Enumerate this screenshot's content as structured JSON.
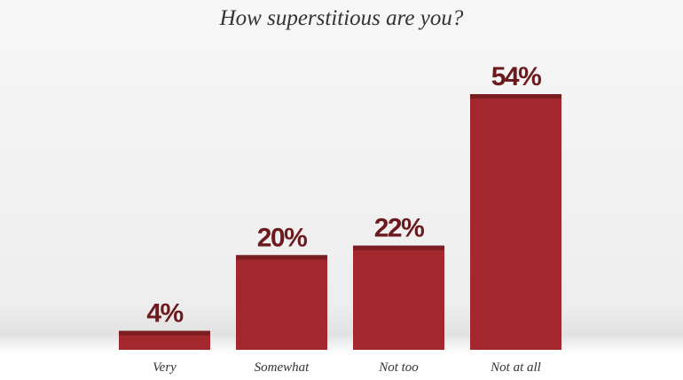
{
  "chart_data": {
    "type": "bar",
    "title": "How superstitious are you?",
    "categories": [
      "Very",
      "Somewhat",
      "Not too",
      "Not at all"
    ],
    "values": [
      4,
      20,
      22,
      54
    ],
    "value_labels": [
      "4%",
      "20%",
      "22%",
      "54%"
    ],
    "color": "#a3282d"
  }
}
